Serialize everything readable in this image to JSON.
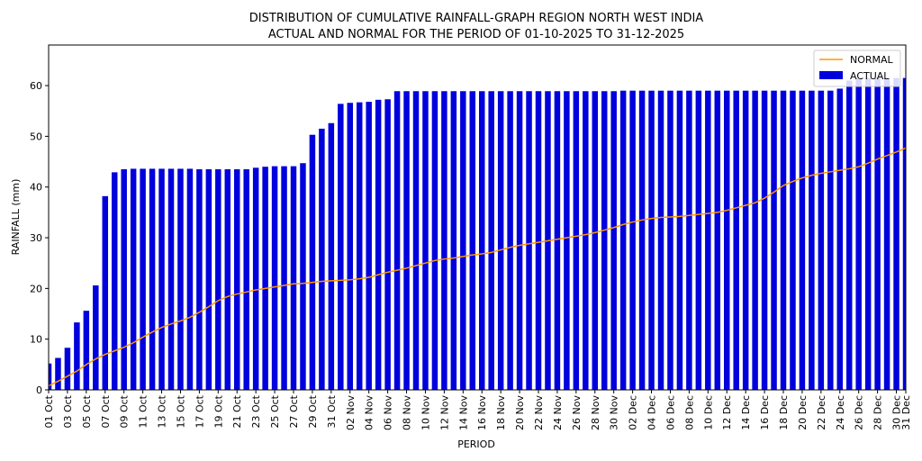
{
  "chart_data": {
    "type": "bar",
    "title": "DISTRIBUTION OF CUMULATIVE RAINFALL-GRAPH REGION NORTH WEST INDIA",
    "subtitle": "ACTUAL AND NORMAL FOR THE PERIOD OF 01-10-2025 TO 31-12-2025",
    "xlabel": "PERIOD",
    "ylabel": "RAINFALL (mm)",
    "ylim": [
      0,
      68
    ],
    "yticks": [
      0,
      10,
      20,
      30,
      40,
      50,
      60
    ],
    "grid": false,
    "legend_position": "top-right",
    "xtick_labels": [
      "01 Oct",
      "03 Oct",
      "05 Oct",
      "07 Oct",
      "09 Oct",
      "11 Oct",
      "13 Oct",
      "15 Oct",
      "17 Oct",
      "19 Oct",
      "21 Oct",
      "23 Oct",
      "25 Oct",
      "27 Oct",
      "29 Oct",
      "31 Oct",
      "02 Nov",
      "04 Nov",
      "06 Nov",
      "08 Nov",
      "10 Nov",
      "12 Nov",
      "14 Nov",
      "16 Nov",
      "18 Nov",
      "20 Nov",
      "22 Nov",
      "24 Nov",
      "26 Nov",
      "28 Nov",
      "30 Nov",
      "02 Dec",
      "04 Dec",
      "06 Dec",
      "08 Dec",
      "10 Dec",
      "12 Dec",
      "14 Dec",
      "16 Dec",
      "18 Dec",
      "20 Dec",
      "22 Dec",
      "24 Dec",
      "26 Dec",
      "28 Dec",
      "30 Dec",
      "31 Dec"
    ],
    "colors": {
      "actual": "#0000dd",
      "normal": "#ff9900"
    },
    "series": [
      {
        "name": "ACTUAL",
        "values": [
          5.2,
          6.3,
          8.3,
          13.3,
          15.6,
          20.6,
          38.2,
          42.9,
          43.5,
          43.6,
          43.6,
          43.6,
          43.6,
          43.6,
          43.6,
          43.6,
          43.5,
          43.5,
          43.5,
          43.5,
          43.5,
          43.5,
          43.8,
          44.0,
          44.1,
          44.1,
          44.1,
          44.7,
          50.3,
          51.5,
          52.6,
          56.4,
          56.6,
          56.7,
          56.8,
          57.2,
          57.3,
          58.9,
          58.9,
          58.9,
          58.9,
          58.9,
          58.9,
          58.9,
          58.9,
          58.9,
          58.9,
          58.9,
          58.9,
          58.9,
          58.9,
          58.9,
          58.9,
          58.9,
          58.9,
          58.9,
          58.9,
          58.9,
          58.9,
          58.9,
          58.9,
          59.0,
          59.0,
          59.0,
          59.0,
          59.0,
          59.0,
          59.0,
          59.0,
          59.0,
          59.0,
          59.0,
          59.0,
          59.0,
          59.0,
          59.0,
          59.0,
          59.0,
          59.0,
          59.0,
          59.0,
          59.0,
          59.0,
          59.0,
          59.4,
          61.0,
          61.5,
          61.5,
          61.5,
          61.5,
          61.5,
          61.5
        ]
      },
      {
        "name": "NORMAL",
        "values": [
          0.8,
          1.7,
          2.7,
          3.7,
          5.0,
          6.1,
          7.0,
          7.7,
          8.4,
          9.3,
          10.4,
          11.4,
          12.3,
          13.0,
          13.6,
          14.3,
          15.3,
          16.4,
          17.6,
          18.4,
          18.9,
          19.3,
          19.7,
          20.0,
          20.3,
          20.6,
          20.9,
          21.0,
          21.2,
          21.4,
          21.5,
          21.6,
          21.7,
          21.9,
          22.2,
          22.7,
          23.2,
          23.6,
          24.0,
          24.5,
          25.0,
          25.5,
          25.8,
          26.0,
          26.3,
          26.6,
          26.8,
          27.1,
          27.6,
          28.1,
          28.5,
          28.8,
          29.1,
          29.4,
          29.7,
          30.0,
          30.3,
          30.6,
          31.0,
          31.5,
          32.0,
          32.6,
          33.1,
          33.5,
          33.8,
          34.0,
          34.1,
          34.2,
          34.4,
          34.6,
          34.8,
          35.0,
          35.4,
          35.9,
          36.4,
          36.9,
          37.8,
          39.0,
          40.3,
          41.1,
          41.8,
          42.3,
          42.7,
          43.0,
          43.3,
          43.6,
          44.0,
          44.7,
          45.5,
          46.2,
          46.9,
          47.7
        ]
      }
    ]
  }
}
